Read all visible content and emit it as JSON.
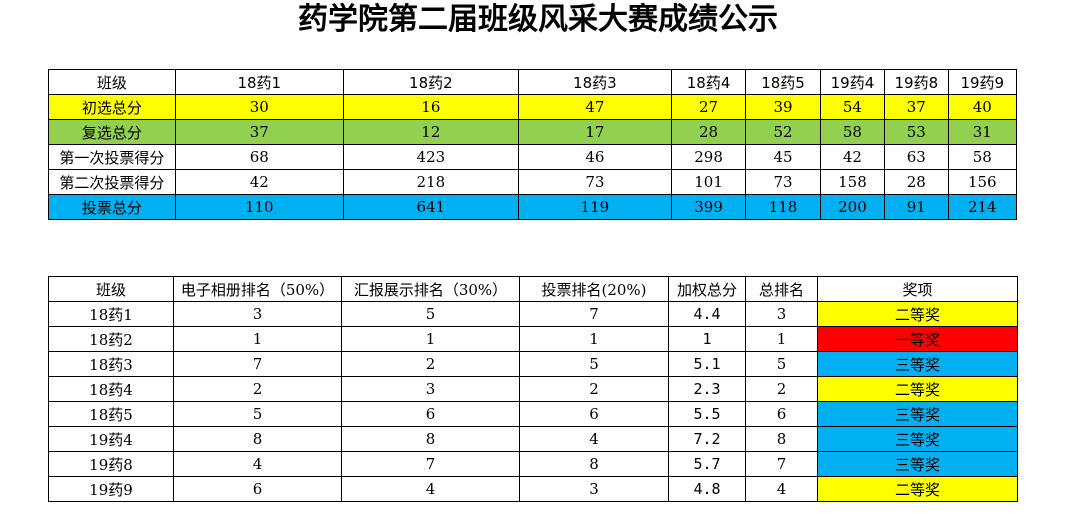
{
  "title": "药学院第二届班级风采大赛成绩公示",
  "score_table": {
    "header_label": "班级",
    "classes": [
      "18药1",
      "18药2",
      "18药3",
      "18药4",
      "18药5",
      "19药4",
      "19药8",
      "19药9"
    ],
    "rows": [
      {
        "label": "初选总分",
        "color": "#ffff00",
        "values": [
          "30",
          "16",
          "47",
          "27",
          "39",
          "54",
          "37",
          "40"
        ]
      },
      {
        "label": "复选总分",
        "color": "#92d050",
        "values": [
          "37",
          "12",
          "17",
          "28",
          "52",
          "58",
          "53",
          "31"
        ]
      },
      {
        "label": "第一次投票得分",
        "color": "#ffffff",
        "values": [
          "68",
          "423",
          "46",
          "298",
          "45",
          "42",
          "63",
          "58"
        ]
      },
      {
        "label": "第二次投票得分",
        "color": "#ffffff",
        "values": [
          "42",
          "218",
          "73",
          "101",
          "73",
          "158",
          "28",
          "156"
        ]
      },
      {
        "label": "投票总分",
        "color": "#00b0f0",
        "values": [
          "110",
          "641",
          "119",
          "399",
          "118",
          "200",
          "91",
          "214"
        ]
      }
    ]
  },
  "ranking_table": {
    "headers": [
      "班级",
      "电子相册排名（50%）",
      "汇报展示排名（30%）",
      "投票排名(20%)",
      "加权总分",
      "总排名",
      "奖项"
    ],
    "rows": [
      {
        "class": "18药1",
        "album": "3",
        "report": "5",
        "vote": "7",
        "weighted": "4.4",
        "rank": "3",
        "award": "二等奖",
        "award_color": "#ffff00"
      },
      {
        "class": "18药2",
        "album": "1",
        "report": "1",
        "vote": "1",
        "weighted": "1",
        "rank": "1",
        "award": "一等奖",
        "award_color": "#ff0000"
      },
      {
        "class": "18药3",
        "album": "7",
        "report": "2",
        "vote": "5",
        "weighted": "5.1",
        "rank": "5",
        "award": "三等奖",
        "award_color": "#00b0f0"
      },
      {
        "class": "18药4",
        "album": "2",
        "report": "3",
        "vote": "2",
        "weighted": "2.3",
        "rank": "2",
        "award": "二等奖",
        "award_color": "#ffff00"
      },
      {
        "class": "18药5",
        "album": "5",
        "report": "6",
        "vote": "6",
        "weighted": "5.5",
        "rank": "6",
        "award": "三等奖",
        "award_color": "#00b0f0"
      },
      {
        "class": "19药4",
        "album": "8",
        "report": "8",
        "vote": "4",
        "weighted": "7.2",
        "rank": "8",
        "award": "三等奖",
        "award_color": "#00b0f0"
      },
      {
        "class": "19药8",
        "album": "4",
        "report": "7",
        "vote": "8",
        "weighted": "5.7",
        "rank": "7",
        "award": "三等奖",
        "award_color": "#00b0f0"
      },
      {
        "class": "19药9",
        "album": "6",
        "report": "4",
        "vote": "3",
        "weighted": "4.8",
        "rank": "4",
        "award": "二等奖",
        "award_color": "#ffff00"
      }
    ]
  }
}
